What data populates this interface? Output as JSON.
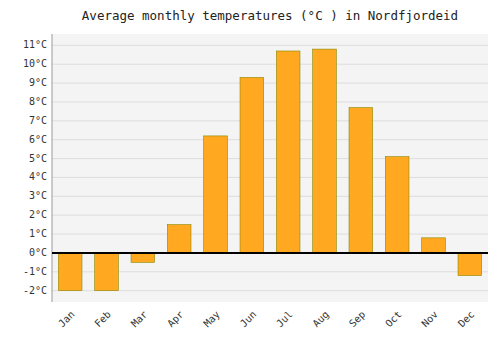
{
  "chart_data": {
    "type": "bar",
    "title": "Average monthly temperatures (°C ) in Nordfjordeid",
    "categories": [
      "Jan",
      "Feb",
      "Mar",
      "Apr",
      "May",
      "Jun",
      "Jul",
      "Aug",
      "Sep",
      "Oct",
      "Nov",
      "Dec"
    ],
    "values": [
      -2.0,
      -2.0,
      -0.5,
      1.5,
      6.2,
      9.3,
      10.7,
      10.8,
      7.7,
      5.1,
      0.8,
      -1.2
    ],
    "color": "#FFA820",
    "ylim": [
      -2.6,
      11.6
    ],
    "yticks": [
      {
        "value": -2,
        "label": "-2°C"
      },
      {
        "value": -1,
        "label": "-1°C"
      },
      {
        "value": 0,
        "label": "0°C"
      },
      {
        "value": 1,
        "label": "1°C"
      },
      {
        "value": 2,
        "label": "2°C"
      },
      {
        "value": 3,
        "label": "3°C"
      },
      {
        "value": 4,
        "label": "4°C"
      },
      {
        "value": 5,
        "label": "5°C"
      },
      {
        "value": 6,
        "label": "6°C"
      },
      {
        "value": 7,
        "label": "7°C"
      },
      {
        "value": 8,
        "label": "8°C"
      },
      {
        "value": 9,
        "label": "9°C"
      },
      {
        "value": 10,
        "label": "10°C"
      },
      {
        "value": 11,
        "label": "11°C"
      }
    ],
    "grid": true
  }
}
